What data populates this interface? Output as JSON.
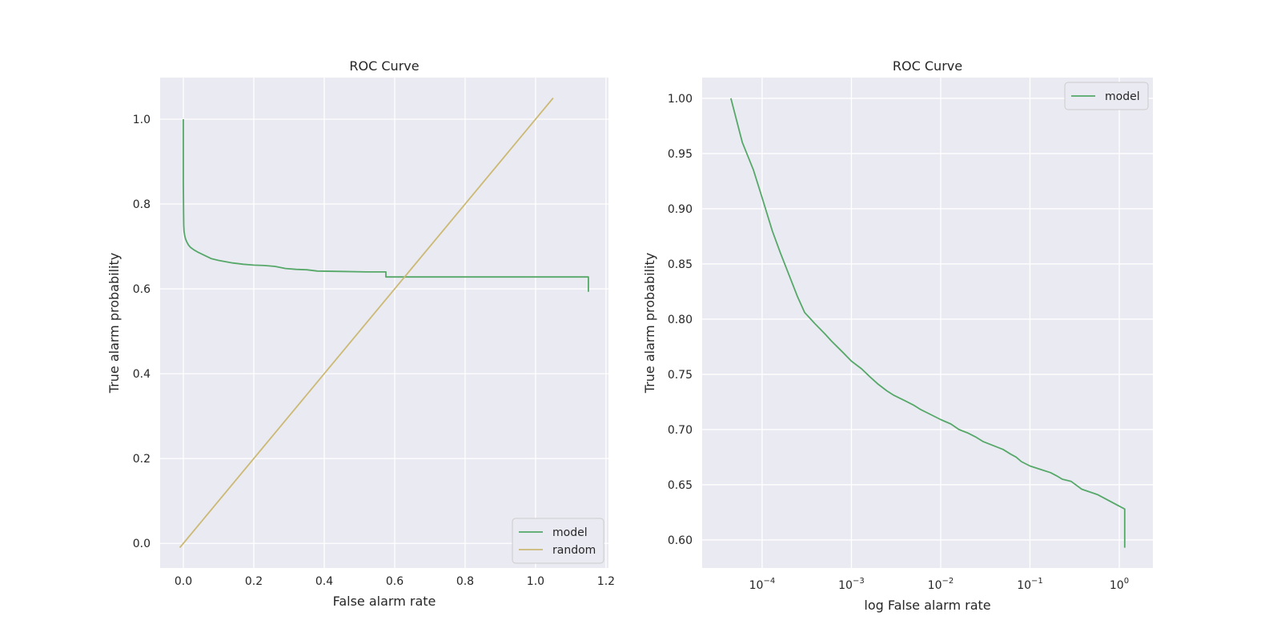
{
  "chart_data": [
    {
      "type": "line",
      "title": "ROC Curve",
      "xlabel": "False alarm rate",
      "ylabel": "True alarm probability",
      "xlim": [
        -0.066,
        1.207
      ],
      "ylim": [
        -0.058,
        1.098
      ],
      "x_scale": "linear",
      "xticks": [
        0.0,
        0.2,
        0.4,
        0.6,
        0.8,
        1.0,
        1.2
      ],
      "xtick_labels": [
        "0.0",
        "0.2",
        "0.4",
        "0.6",
        "0.8",
        "1.0",
        "1.2"
      ],
      "yticks": [
        0.0,
        0.2,
        0.4,
        0.6,
        0.8,
        1.0
      ],
      "ytick_labels": [
        "0.0",
        "0.2",
        "0.4",
        "0.6",
        "0.8",
        "1.0"
      ],
      "grid": true,
      "legend_position": "lower-right",
      "series": [
        {
          "name": "model",
          "color": "#55a868",
          "x": [
            0,
            0,
            0.0005,
            0.001,
            0.002,
            0.004,
            0.006,
            0.01,
            0.015,
            0.02,
            0.03,
            0.04,
            0.05,
            0.06,
            0.07,
            0.08,
            0.1,
            0.12,
            0.14,
            0.17,
            0.2,
            0.23,
            0.26,
            0.29,
            0.32,
            0.35,
            0.38,
            0.45,
            0.52,
            0.575,
            0.575,
            0.8,
            1.0,
            1.15,
            1.15
          ],
          "y": [
            1.0,
            0.85,
            0.78,
            0.75,
            0.735,
            0.725,
            0.718,
            0.71,
            0.703,
            0.698,
            0.692,
            0.687,
            0.683,
            0.679,
            0.675,
            0.671,
            0.667,
            0.664,
            0.661,
            0.658,
            0.656,
            0.655,
            0.653,
            0.648,
            0.646,
            0.645,
            0.642,
            0.641,
            0.64,
            0.64,
            0.628,
            0.628,
            0.628,
            0.628,
            0.593
          ]
        },
        {
          "name": "random",
          "color": "#ccb974",
          "x": [
            -0.01,
            1.05
          ],
          "y": [
            -0.01,
            1.05
          ]
        }
      ]
    },
    {
      "type": "line",
      "title": "ROC Curve",
      "xlabel": "log False alarm rate",
      "ylabel": "True alarm probability",
      "xlim": [
        2.13e-05,
        2.38
      ],
      "ylim": [
        0.5746,
        1.0188
      ],
      "x_scale": "log",
      "xticks": [
        0.0001,
        0.001,
        0.01,
        0.1,
        1
      ],
      "xtick_labels": [
        {
          "base": "10",
          "exp": "−4"
        },
        {
          "base": "10",
          "exp": "−3"
        },
        {
          "base": "10",
          "exp": "−2"
        },
        {
          "base": "10",
          "exp": "−1"
        },
        {
          "base": "10",
          "exp": "0"
        }
      ],
      "yticks": [
        0.6,
        0.65,
        0.7,
        0.75,
        0.8,
        0.85,
        0.9,
        0.95,
        1.0
      ],
      "ytick_labels": [
        "0.60",
        "0.65",
        "0.70",
        "0.75",
        "0.80",
        "0.85",
        "0.90",
        "0.95",
        "1.00"
      ],
      "grid": true,
      "legend_position": "upper-right",
      "series": [
        {
          "name": "model",
          "color": "#55a868",
          "x": [
            4.47e-05,
            6e-05,
            8e-05,
            0.0001,
            0.00013,
            0.00016,
            0.0002,
            0.00025,
            0.0003,
            0.0004,
            0.0005,
            0.0006,
            0.0008,
            0.001,
            0.0013,
            0.0016,
            0.002,
            0.0025,
            0.003,
            0.004,
            0.005,
            0.006,
            0.008,
            0.01,
            0.013,
            0.016,
            0.02,
            0.025,
            0.03,
            0.04,
            0.05,
            0.06,
            0.07,
            0.08,
            0.1,
            0.13,
            0.17,
            0.2,
            0.23,
            0.29,
            0.38,
            0.575,
            1.15,
            1.15
          ],
          "y": [
            1.0,
            0.96,
            0.935,
            0.91,
            0.88,
            0.86,
            0.84,
            0.82,
            0.806,
            0.795,
            0.787,
            0.78,
            0.77,
            0.762,
            0.755,
            0.748,
            0.741,
            0.735,
            0.731,
            0.726,
            0.722,
            0.718,
            0.713,
            0.709,
            0.705,
            0.7,
            0.697,
            0.693,
            0.689,
            0.685,
            0.682,
            0.678,
            0.675,
            0.671,
            0.667,
            0.664,
            0.661,
            0.658,
            0.655,
            0.653,
            0.646,
            0.641,
            0.628,
            0.593
          ]
        }
      ]
    }
  ]
}
